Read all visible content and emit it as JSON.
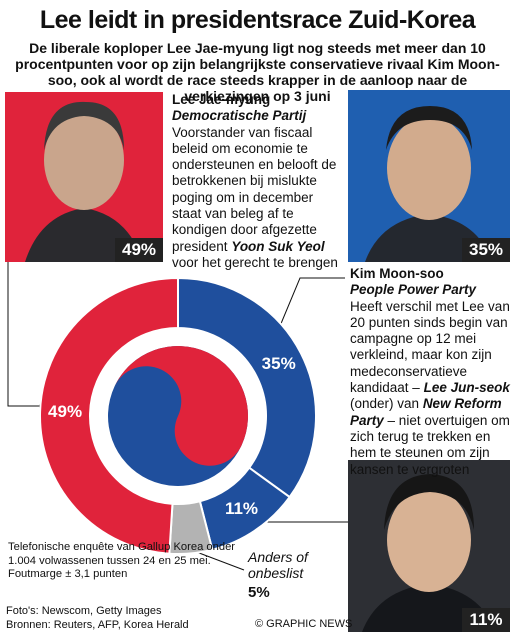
{
  "chart_data": {
    "type": "pie",
    "title": "Lee leidt in presidentsrace Zuid-Korea",
    "subtitle": "De liberale koploper Lee Jae-myung ligt nog steeds met meer dan 10 procentpunten voor op zijn belangrijkste conservatieve rivaal Kim Moon-soo, ook al wordt de race steeds krapper in de aanloop naar de verkiezingen op 3 juni",
    "categories": [
      "Kim Moon-soo",
      "Lee Jun-seok",
      "Anders of onbeslist",
      "Lee Jae-myung"
    ],
    "values": [
      35,
      11,
      5,
      49
    ],
    "value_labels": [
      "35%",
      "11%",
      "5%",
      "49%"
    ],
    "colors": [
      "#1f4f9d",
      "#1f4f9d",
      "#b3b3b3",
      "#e0233b"
    ]
  },
  "candidates": {
    "lee": {
      "party": "Democratische Partij",
      "text_1": "Voorstander van fiscaal beleid om economie te ondersteunen en belooft de betrokkenen bij mislukte poging om in december staat van beleg af te kondigen door afgezette president",
      "name_2": "Yoon Suk Yeol",
      "text_2": "voor het gerecht te brengen"
    },
    "kim": {
      "party": "People Power Party",
      "text_1": "Heeft verschil met Lee van 20 punten sinds begin van campagne op 12 mei verkleind, maar kon zijn medeconservatieve kandidaat –",
      "text_2": "(onder) van",
      "party_2": "New Reform Party",
      "text_3": "– niet overtuigen om zich terug te trekken en hem te steunen om zijn kansen te vergroten"
    }
  },
  "footnote": "Telefonische enquête van Gallup Korea onder 1.004 volwassenen tussen 24 en 25 mei. Foutmarge ± 3,1 punten",
  "sources": [
    "Foto's: Newscom, Getty Images",
    "Bronnen: Reuters, AFP, Korea Herald"
  ],
  "copyright": "© GRAPHIC NEWS"
}
